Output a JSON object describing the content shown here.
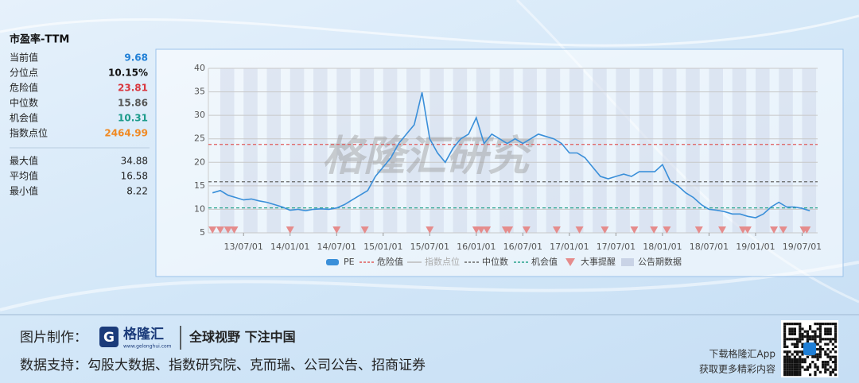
{
  "panel": {
    "title": "市盈率-TTM",
    "stats": [
      {
        "label": "当前值",
        "value": 9.68,
        "color": "#1f7fd6"
      },
      {
        "label": "分位点",
        "value": "10.15%",
        "color": "#111111"
      },
      {
        "label": "危险值",
        "value": 23.81,
        "color": "#d9363e"
      },
      {
        "label": "中位数",
        "value": 15.86,
        "color": "#555555"
      },
      {
        "label": "机会值",
        "value": 10.31,
        "color": "#1a9a8a"
      },
      {
        "label": "指数点位",
        "value": 2464.99,
        "color": "#f08a24"
      }
    ],
    "extremes": [
      {
        "label": "最大值",
        "value": 34.88
      },
      {
        "label": "平均值",
        "value": 16.58
      },
      {
        "label": "最小值",
        "value": 8.22
      }
    ]
  },
  "chart_data": {
    "type": "line",
    "watermark": "格隆汇研究",
    "x": [
      "13/03/01",
      "13/04/01",
      "13/05/01",
      "13/06/01",
      "13/07/01",
      "13/08/01",
      "13/09/01",
      "13/10/01",
      "13/11/01",
      "13/12/01",
      "14/01/01",
      "14/02/01",
      "14/03/01",
      "14/04/01",
      "14/05/01",
      "14/06/01",
      "14/07/01",
      "14/08/01",
      "14/09/01",
      "14/10/01",
      "14/11/01",
      "14/12/01",
      "15/01/01",
      "15/02/01",
      "15/03/01",
      "15/04/01",
      "15/05/01",
      "15/06/01",
      "15/07/01",
      "15/08/01",
      "15/09/01",
      "15/10/01",
      "15/11/01",
      "15/12/01",
      "16/01/01",
      "16/02/01",
      "16/03/01",
      "16/04/01",
      "16/05/01",
      "16/06/01",
      "16/07/01",
      "16/08/01",
      "16/09/01",
      "16/10/01",
      "16/11/01",
      "16/12/01",
      "17/01/01",
      "17/02/01",
      "17/03/01",
      "17/04/01",
      "17/05/01",
      "17/06/01",
      "17/07/01",
      "17/08/01",
      "17/09/01",
      "17/10/01",
      "17/11/01",
      "17/12/01",
      "18/01/01",
      "18/02/01",
      "18/03/01",
      "18/04/01",
      "18/05/01",
      "18/06/01",
      "18/07/01",
      "18/08/01",
      "18/09/01",
      "18/10/01",
      "18/11/01",
      "18/12/01",
      "19/01/01",
      "19/02/01",
      "19/03/01",
      "19/04/01",
      "19/05/01",
      "19/06/01",
      "19/07/01",
      "19/08/01"
    ],
    "series": [
      {
        "name": "PE",
        "color": "#3a8fd9",
        "values": [
          13.5,
          14,
          13,
          12.5,
          12,
          12.2,
          11.8,
          11.5,
          11,
          10.5,
          9.8,
          10,
          9.7,
          10,
          10.1,
          10,
          10.3,
          11,
          12,
          13,
          14,
          17,
          19,
          21,
          24,
          26,
          28,
          34.88,
          25,
          22,
          20,
          23,
          25,
          26,
          29.5,
          24,
          26,
          25,
          24,
          25,
          24,
          25,
          26,
          25.5,
          25,
          24,
          22,
          22,
          21,
          19,
          17,
          16.5,
          17,
          17.5,
          17,
          18,
          18,
          18,
          19.5,
          16,
          15,
          13.5,
          12.5,
          11,
          10,
          9.8,
          9.5,
          9,
          9,
          8.5,
          8.22,
          9,
          10.5,
          11.5,
          10.5,
          10.5,
          10.2,
          9.68
        ]
      }
    ],
    "reference_lines": [
      {
        "name": "危险值",
        "value": 23.81,
        "color": "#e05a5a"
      },
      {
        "name": "中位数",
        "value": 15.86,
        "color": "#666666"
      },
      {
        "name": "机会值",
        "value": 10.31,
        "color": "#2aa58e"
      }
    ],
    "index_legend": {
      "name": "指数点位",
      "color": "#bbbbbb"
    },
    "events": {
      "name": "大事提醒",
      "color": "#e58c8c",
      "x": [
        "13/03/01",
        "13/04/01",
        "13/05/01",
        "13/05/25",
        "14/01/01",
        "14/07/01",
        "14/10/20",
        "15/07/01",
        "16/01/01",
        "16/01/20",
        "16/02/12",
        "16/04/25",
        "16/05/08",
        "16/07/15",
        "16/11/12",
        "17/02/10",
        "17/05/18",
        "17/09/12",
        "17/11/28",
        "18/01/18",
        "18/05/22",
        "18/08/22",
        "18/11/12",
        "18/11/30",
        "19/03/12",
        "19/04/18",
        "19/07/07",
        "19/07/19"
      ]
    },
    "report_periods": {
      "name": "公告期数据",
      "color": "#c9d3e6"
    },
    "xlim": [
      "13/02/15",
      "19/09/01"
    ],
    "xticks": [
      "13/07/01",
      "14/01/01",
      "14/07/01",
      "15/01/01",
      "15/07/01",
      "16/01/01",
      "16/07/01",
      "17/01/01",
      "17/07/01",
      "18/01/01",
      "18/07/01",
      "19/01/01",
      "19/07/01"
    ],
    "ylim": [
      5,
      40
    ],
    "yticks": [
      5,
      10,
      15,
      20,
      25,
      30,
      35,
      40
    ],
    "grid": true
  },
  "footer": {
    "made_by_label": "图片制作：",
    "brand": "格隆汇",
    "brand_url": "www.gelonghui.com",
    "slogan": "全球视野 下注中国",
    "sources": "数据支持：勾股大数据、指数研究院、克而瑞、公司公告、招商证券",
    "app_line1": "下载格隆汇App",
    "app_line2": "获取更多精彩内容"
  }
}
